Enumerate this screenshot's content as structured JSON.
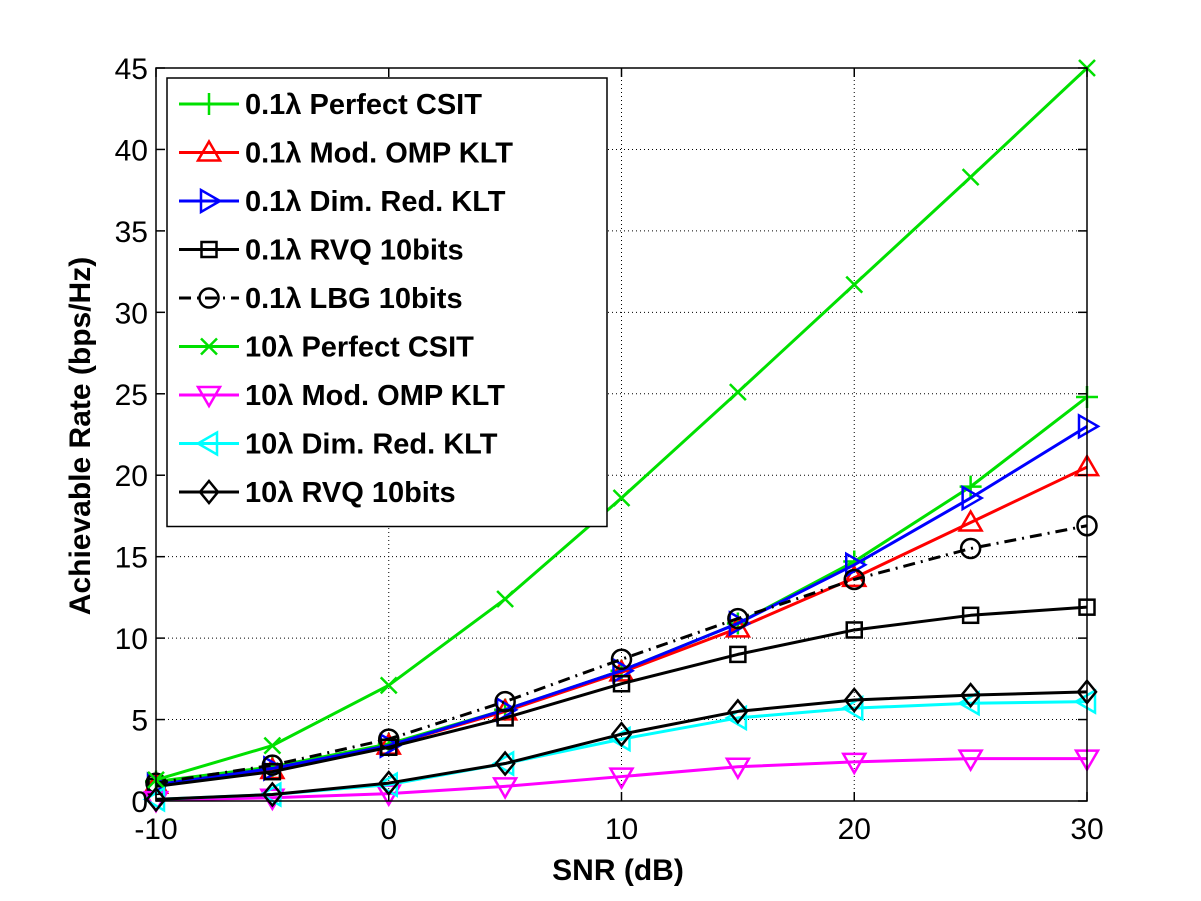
{
  "chart_data": {
    "type": "line",
    "title": "",
    "xlabel": "SNR (dB)",
    "ylabel": "Achievable Rate (bps/Hz)",
    "xlim": [
      -10,
      30
    ],
    "ylim": [
      0,
      45
    ],
    "xticks": [
      -10,
      0,
      10,
      20,
      30
    ],
    "yticks": [
      0,
      5,
      10,
      15,
      20,
      25,
      30,
      35,
      40,
      45
    ],
    "grid": true,
    "legend_position": "top-left",
    "x": [
      -10,
      -5,
      0,
      5,
      10,
      15,
      20,
      25,
      30
    ],
    "series": [
      {
        "name": "0.1λ Perfect CSIT",
        "color": "#00e000",
        "marker": "plus",
        "dash": "solid",
        "values": [
          1.2,
          2.1,
          3.5,
          5.6,
          8.0,
          10.9,
          14.7,
          19.3,
          24.8
        ]
      },
      {
        "name": "0.1λ Mod. OMP KLT",
        "color": "#ff0000",
        "marker": "triangle-up",
        "dash": "solid",
        "values": [
          1.0,
          1.9,
          3.4,
          5.5,
          7.9,
          10.6,
          13.7,
          17.1,
          20.5
        ]
      },
      {
        "name": "0.1λ Dim. Red. KLT",
        "color": "#0000ff",
        "marker": "triangle-right",
        "dash": "solid",
        "values": [
          1.0,
          2.0,
          3.4,
          5.6,
          8.0,
          10.9,
          14.5,
          18.6,
          23.0
        ]
      },
      {
        "name": "0.1λ RVQ 10bits",
        "color": "#000000",
        "marker": "square",
        "dash": "solid",
        "values": [
          0.9,
          1.8,
          3.3,
          5.1,
          7.2,
          9.0,
          10.5,
          11.4,
          11.9
        ]
      },
      {
        "name": "0.1λ LBG 10bits",
        "color": "#000000",
        "marker": "circle",
        "dash": "dashdot",
        "values": [
          1.1,
          2.2,
          3.8,
          6.1,
          8.7,
          11.2,
          13.6,
          15.5,
          16.9
        ]
      },
      {
        "name": "10λ Perfect CSIT",
        "color": "#00e000",
        "marker": "x",
        "dash": "solid",
        "values": [
          1.3,
          3.4,
          7.1,
          12.4,
          18.6,
          25.1,
          31.7,
          38.3,
          45.0
        ]
      },
      {
        "name": "10λ Mod. OMP KLT",
        "color": "#ff00ff",
        "marker": "triangle-down",
        "dash": "solid",
        "values": [
          0.05,
          0.2,
          0.45,
          0.9,
          1.5,
          2.1,
          2.4,
          2.6,
          2.6
        ]
      },
      {
        "name": "10λ Dim. Red. KLT",
        "color": "#00ffff",
        "marker": "triangle-left",
        "dash": "solid",
        "values": [
          0.1,
          0.4,
          1.0,
          2.3,
          3.8,
          5.1,
          5.7,
          6.0,
          6.1
        ]
      },
      {
        "name": "10λ RVQ 10bits",
        "color": "#000000",
        "marker": "diamond",
        "dash": "solid",
        "values": [
          0.1,
          0.4,
          1.1,
          2.3,
          4.1,
          5.5,
          6.2,
          6.5,
          6.7
        ]
      }
    ]
  }
}
